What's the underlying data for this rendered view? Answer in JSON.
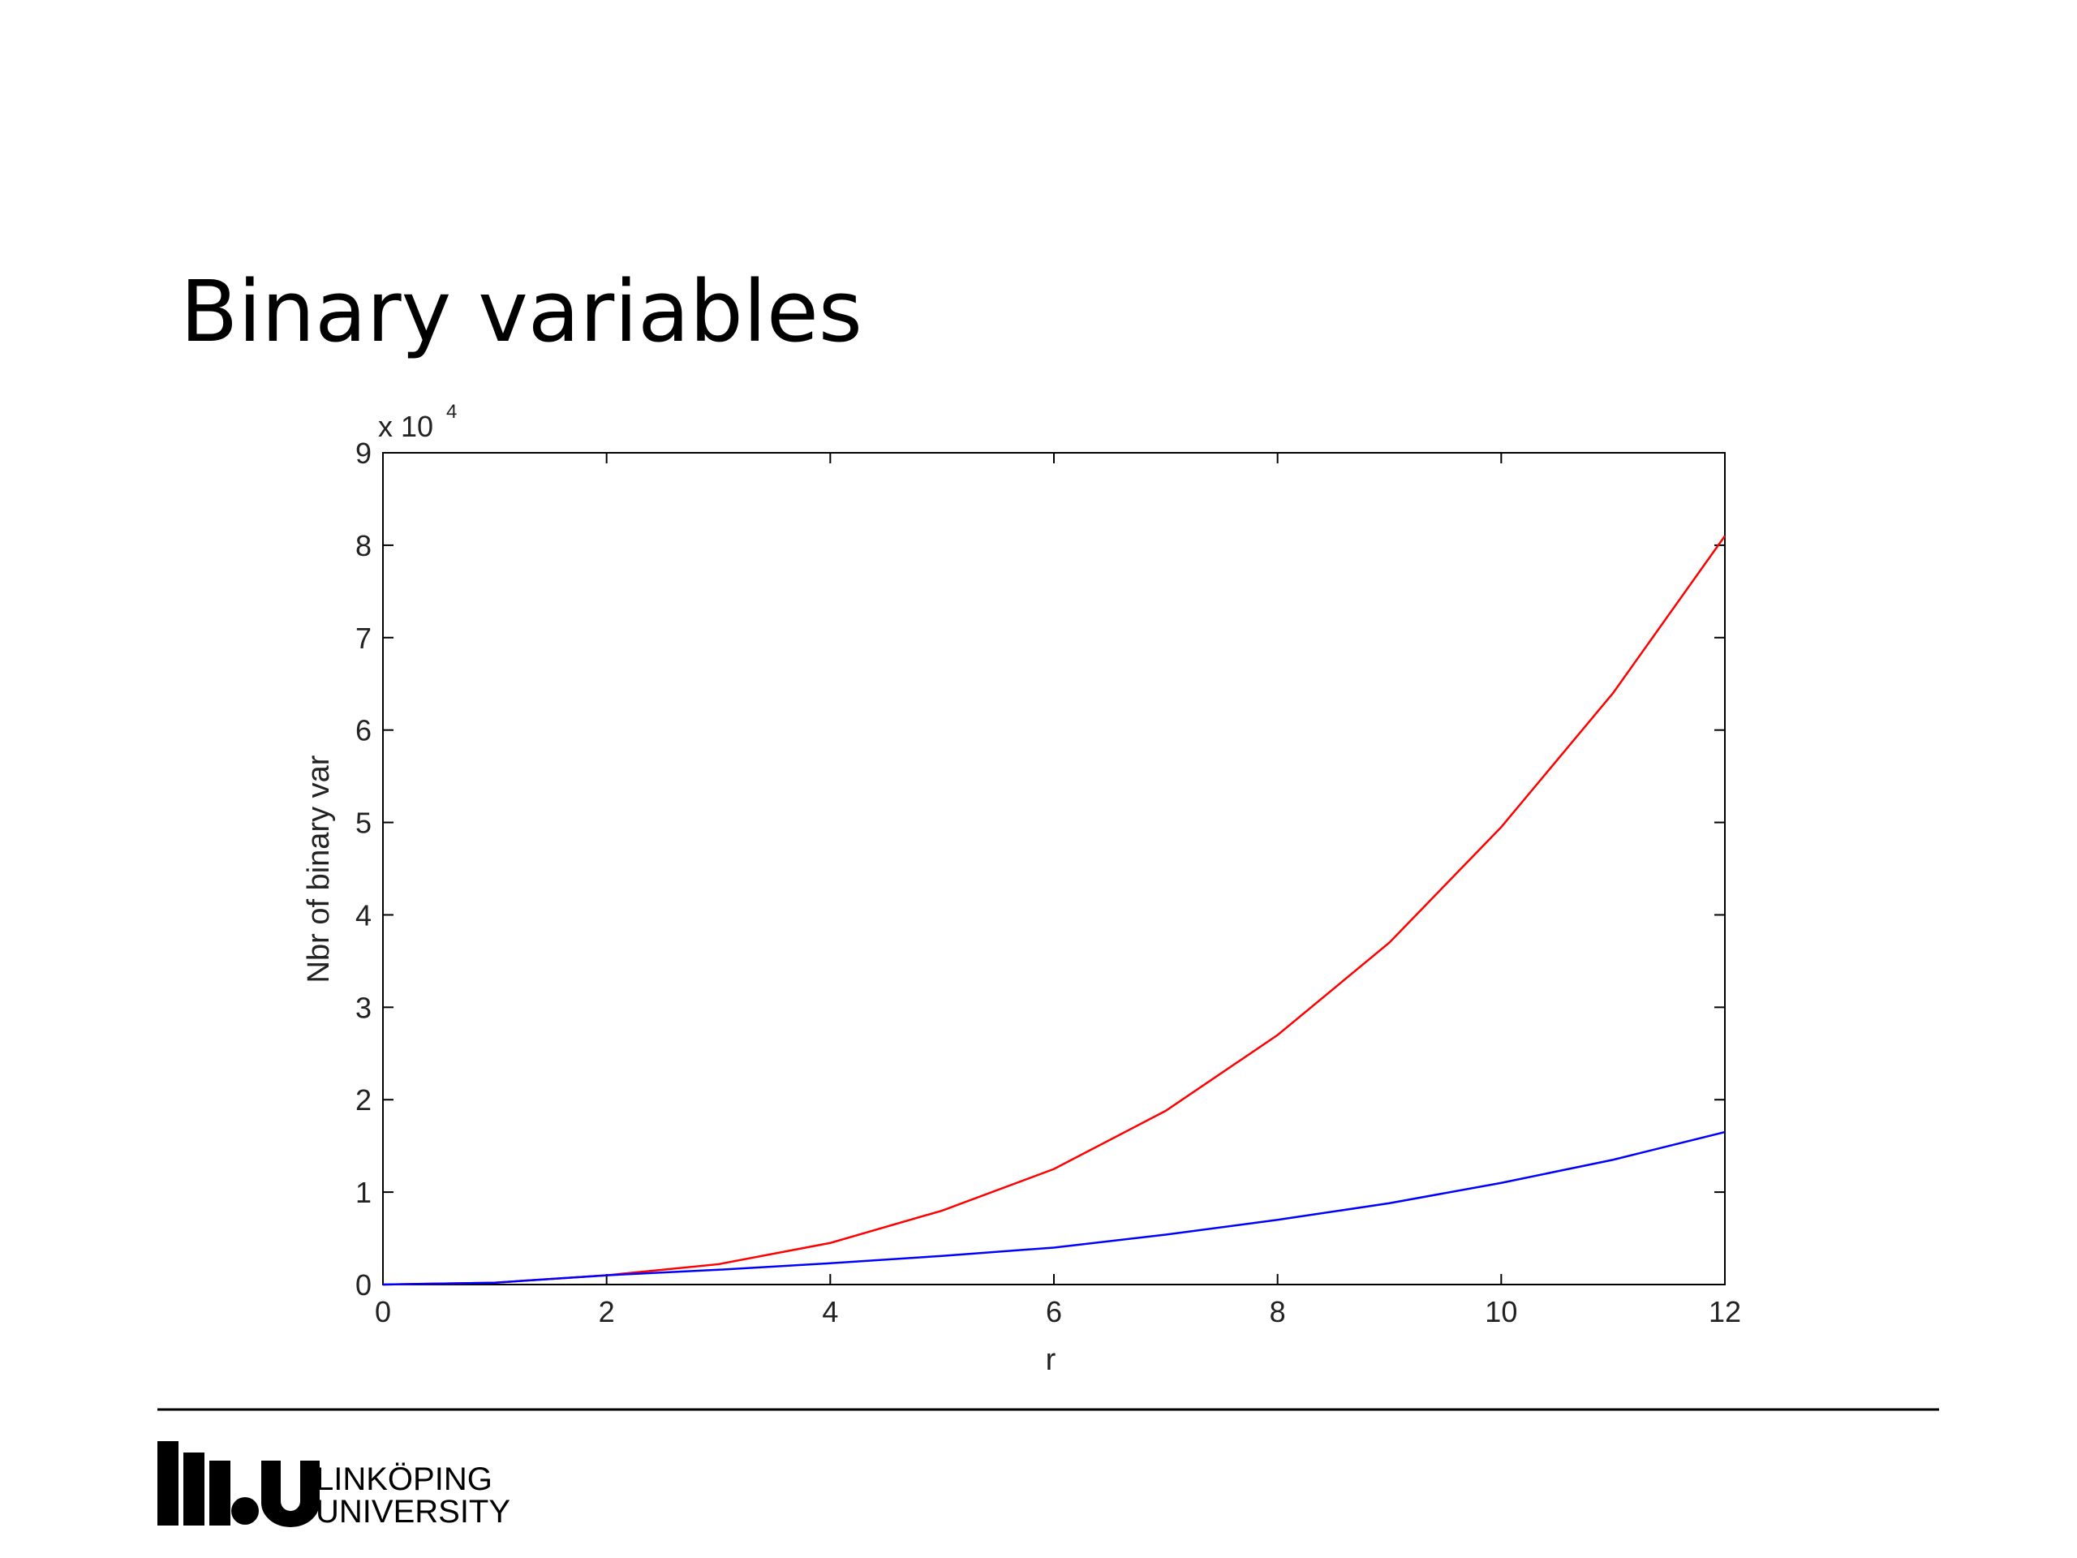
{
  "chart_data": {
    "type": "line",
    "title": "Binary variables",
    "x_label": "r",
    "y_label": "Nbr of binary var",
    "y_multiplier": "x 10",
    "y_exponent": "4",
    "x": [
      0,
      1,
      2,
      3,
      4,
      5,
      6,
      7,
      8,
      9,
      10,
      11,
      12
    ],
    "series": [
      {
        "color": "#ff0000",
        "values": [
          0,
          0.02,
          0.1,
          0.22,
          0.45,
          0.8,
          1.25,
          1.88,
          2.7,
          3.7,
          4.95,
          6.4,
          8.1
        ]
      },
      {
        "color": "#0000ff",
        "values": [
          0,
          0.02,
          0.1,
          0.16,
          0.23,
          0.31,
          0.4,
          0.54,
          0.7,
          0.88,
          1.1,
          1.35,
          1.65
        ]
      }
    ],
    "xlim": [
      0,
      12
    ],
    "xticks": [
      0,
      2,
      4,
      6,
      8,
      10,
      12
    ],
    "ylim": [
      0,
      9
    ],
    "yticks": [
      0,
      1,
      2,
      3,
      4,
      5,
      6,
      7,
      8,
      9
    ],
    "grid": false
  },
  "footer": {
    "logo_line1": "LINKÖPING",
    "logo_line2": "UNIVERSITY"
  }
}
